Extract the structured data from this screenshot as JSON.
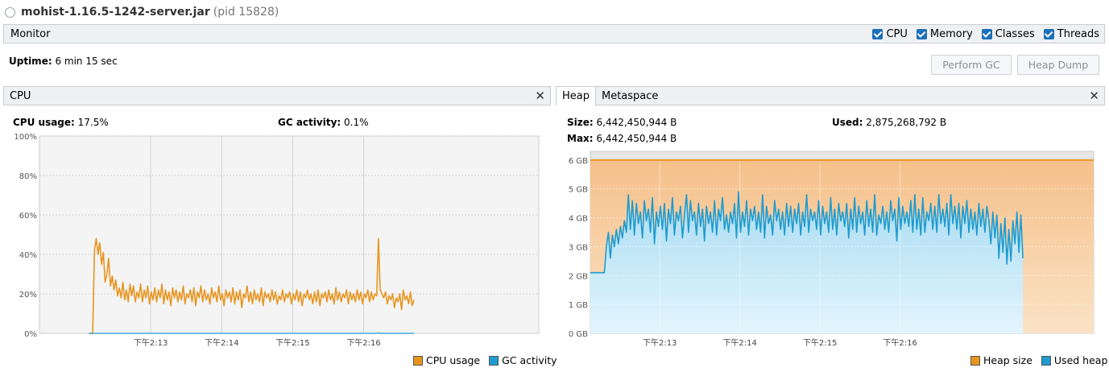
{
  "title": {
    "process": "mohist-1.16.5-1242-server.jar",
    "pid": "(pid 15828)"
  },
  "monitor": {
    "label": "Monitor",
    "checkboxes": [
      "CPU",
      "Memory",
      "Classes",
      "Threads"
    ]
  },
  "uptime": {
    "label": "Uptime:",
    "value": "6 min 15 sec"
  },
  "buttons": {
    "perform_gc": "Perform GC",
    "heap_dump": "Heap Dump"
  },
  "cpu_panel": {
    "tab": "CPU",
    "usage_label": "CPU usage:",
    "usage_value": "17.5%",
    "gc_label": "GC activity:",
    "gc_value": "0.1%"
  },
  "heap_panel": {
    "tabs": [
      "Heap",
      "Metaspace"
    ],
    "size_label": "Size:",
    "size_value": "6,442,450,944 B",
    "used_label": "Used:",
    "used_value": "2,875,268,792 B",
    "max_label": "Max:",
    "max_value": "6,442,450,944 B"
  },
  "colors": {
    "orange": "#e8951f",
    "blue": "#1f9bcf",
    "heap_fill": "#f7cc9d",
    "used_fill": "#bfe7f8"
  },
  "chart_data": [
    {
      "type": "line",
      "title": "CPU",
      "ylabel": "%",
      "ylim": [
        0,
        100
      ],
      "yticks": [
        "0%",
        "20%",
        "40%",
        "60%",
        "80%",
        "100%"
      ],
      "xlim": [
        -42,
        380
      ],
      "xticks": [
        {
          "t": 52,
          "label": "下午2:13"
        },
        {
          "t": 112,
          "label": "下午2:14"
        },
        {
          "t": 172,
          "label": "下午2:15"
        },
        {
          "t": 232,
          "label": "下午2:16"
        }
      ],
      "series": [
        {
          "name": "CPU usage",
          "color": "#e8951f",
          "t_start": 0,
          "t_step": 1.5,
          "values": [
            0,
            0,
            0,
            42,
            48,
            40,
            46,
            35,
            41,
            26,
            30,
            38,
            24,
            29,
            22,
            27,
            19,
            23,
            18,
            26,
            17,
            22,
            16,
            25,
            19,
            24,
            16,
            21,
            18,
            25,
            16,
            22,
            18,
            24,
            15,
            21,
            17,
            23,
            16,
            22,
            18,
            25,
            15,
            22,
            17,
            21,
            14,
            23,
            18,
            22,
            16,
            21,
            17,
            24,
            15,
            20,
            18,
            22,
            16,
            23,
            14,
            21,
            18,
            24,
            16,
            22,
            17,
            20,
            15,
            23,
            18,
            21,
            16,
            24,
            17,
            20,
            14,
            22,
            18,
            21,
            16,
            23,
            15,
            21,
            17,
            22,
            13,
            20,
            18,
            24,
            16,
            21,
            15,
            22,
            17,
            20,
            16,
            23,
            14,
            21,
            18,
            20,
            16,
            22,
            17,
            21,
            15,
            19,
            17,
            22,
            16,
            20,
            18,
            21,
            15,
            20,
            17,
            22,
            16,
            21,
            14,
            20,
            18,
            22,
            17,
            20,
            15,
            21,
            16,
            22,
            14,
            20,
            18,
            21,
            16,
            22,
            17,
            20,
            15,
            23,
            17,
            21,
            16,
            20,
            18,
            22,
            15,
            21,
            17,
            20,
            16,
            22,
            17,
            21,
            15,
            20,
            18,
            22,
            16,
            21,
            17,
            20,
            19,
            48,
            22,
            20,
            18,
            21,
            15,
            19,
            17,
            20,
            13,
            18,
            16,
            20,
            12,
            22,
            17,
            19,
            15,
            21,
            14,
            17
          ]
        },
        {
          "name": "GC activity",
          "color": "#1f9bcf",
          "t_start": 0,
          "t_step": 1.5,
          "values": [
            0,
            0,
            0,
            0,
            0,
            0,
            0,
            0,
            0,
            0,
            0,
            0,
            0,
            0,
            0,
            0,
            0,
            0,
            0,
            0,
            0,
            0,
            0,
            0,
            0,
            0,
            0,
            0,
            0,
            0,
            0,
            0,
            0,
            0,
            0,
            0,
            0,
            0,
            0,
            0,
            0,
            0,
            0,
            0,
            0,
            0,
            0,
            0,
            0,
            0,
            0,
            0,
            0,
            0,
            0,
            0,
            0,
            0,
            0,
            0,
            0,
            0,
            0,
            0,
            0,
            0,
            0,
            0,
            0,
            0,
            0,
            0,
            0,
            0,
            0,
            0,
            0,
            0,
            0,
            0,
            0,
            0,
            0,
            0,
            0,
            0,
            0,
            0,
            0,
            0,
            0,
            0,
            0,
            0,
            0,
            0,
            0,
            0,
            0,
            0,
            0,
            0,
            0,
            0,
            0,
            0,
            0,
            0,
            0,
            0,
            0,
            0,
            0,
            0,
            0,
            0,
            0,
            0,
            0,
            0,
            0,
            0,
            0,
            0,
            0,
            0,
            0,
            0,
            0,
            0,
            0,
            0,
            0,
            0,
            0,
            0,
            0,
            0,
            0,
            0,
            0,
            0,
            0,
            0,
            0,
            0,
            0,
            0,
            0,
            0,
            0,
            0,
            0,
            0,
            0,
            0,
            0,
            0,
            0,
            0,
            0,
            0,
            0,
            0.3,
            0,
            0,
            0,
            0,
            0,
            0,
            0,
            0,
            0,
            0,
            0,
            0,
            0,
            0,
            0,
            0,
            0,
            0,
            0,
            0
          ]
        }
      ],
      "legend": [
        "CPU usage",
        "GC activity"
      ]
    },
    {
      "type": "area",
      "title": "Heap",
      "ylabel": "GB",
      "ylim": [
        0,
        6.3
      ],
      "yticks": [
        "0 GB",
        "1 GB",
        "2 GB",
        "3 GB",
        "4 GB",
        "5 GB",
        "6 GB"
      ],
      "xlim": [
        0,
        377
      ],
      "xticks": [
        {
          "t": 52,
          "label": "下午2:13"
        },
        {
          "t": 112,
          "label": "下午2:14"
        },
        {
          "t": 172,
          "label": "下午2:15"
        },
        {
          "t": 232,
          "label": "下午2:16"
        }
      ],
      "series": [
        {
          "name": "Heap size",
          "color": "#e8951f",
          "fill": "#f7cc9d",
          "t_start": 0,
          "t_step": 1.5,
          "constant": 6.0
        },
        {
          "name": "Used heap",
          "color": "#1f9bcf",
          "fill": "#bfe7f8",
          "t_start": 0,
          "t_step": 1.5,
          "values": [
            2.1,
            2.1,
            2.1,
            2.1,
            2.1,
            2.1,
            2.1,
            2.1,
            3.0,
            3.5,
            2.6,
            3.4,
            3.0,
            3.6,
            3.1,
            3.7,
            3.3,
            3.9,
            3.5,
            4.8,
            3.6,
            4.6,
            3.4,
            4.5,
            3.8,
            4.2,
            3.3,
            4.6,
            3.9,
            4.3,
            3.5,
            4.7,
            3.1,
            4.2,
            3.7,
            4.4,
            3.6,
            4.5,
            3.2,
            4.3,
            3.8,
            4.7,
            3.4,
            4.2,
            3.9,
            4.4,
            3.3,
            4.1,
            4.8,
            3.5,
            4.6,
            3.9,
            4.2,
            3.4,
            4.5,
            3.7,
            4.3,
            3.2,
            4.4,
            3.8,
            4.2,
            3.5,
            4.6,
            3.4,
            4.3,
            3.9,
            4.7,
            3.6,
            4.1,
            3.5,
            4.2,
            3.8,
            4.5,
            3.3,
            4.9,
            3.5,
            4.2,
            3.7,
            4.6,
            3.4,
            4.3,
            3.9,
            4.4,
            3.6,
            4.2,
            3.5,
            4.8,
            3.3,
            4.4,
            3.8,
            4.1,
            3.4,
            4.6,
            3.9,
            4.3,
            3.6,
            4.2,
            3.4,
            4.5,
            3.7,
            4.4,
            3.5,
            4.3,
            3.8,
            4.5,
            3.4,
            4.2,
            3.7,
            4.8,
            3.5,
            4.3,
            3.9,
            4.2,
            3.6,
            4.6,
            3.4,
            4.4,
            3.8,
            4.2,
            3.5,
            4.7,
            3.6,
            4.3,
            3.4,
            4.5,
            3.9,
            4.2,
            3.7,
            4.5,
            3.3,
            4.3,
            3.6,
            4.7,
            3.5,
            4.4,
            3.8,
            4.2,
            3.4,
            4.6,
            3.7,
            4.3,
            3.5,
            4.8,
            3.4,
            4.1,
            3.8,
            4.4,
            3.6,
            4.2,
            3.5,
            4.6,
            3.9,
            4.3,
            3.2,
            4.7,
            3.6,
            4.4,
            3.8,
            4.2,
            3.7,
            4.6,
            3.5,
            4.8,
            3.6,
            4.3,
            3.4,
            4.7,
            3.5,
            4.2,
            3.9,
            4.5,
            3.6,
            4.4,
            3.5,
            4.8,
            3.8,
            4.3,
            3.7,
            4.5,
            3.4,
            4.8,
            3.8,
            4.4,
            3.6,
            4.5,
            3.3,
            4.4,
            3.8,
            4.6,
            3.5,
            4.3,
            3.6,
            4.2,
            3.4,
            4.5,
            3.7,
            4.3,
            3.5,
            4.4,
            3.9,
            3.1,
            4.2,
            3.3,
            4.1,
            2.6,
            3.8,
            2.8,
            4.0,
            2.4,
            3.6,
            2.5,
            3.9,
            3.1,
            4.2,
            2.8,
            4.1,
            2.6
          ]
        }
      ],
      "legend": [
        "Heap size",
        "Used heap"
      ]
    }
  ]
}
